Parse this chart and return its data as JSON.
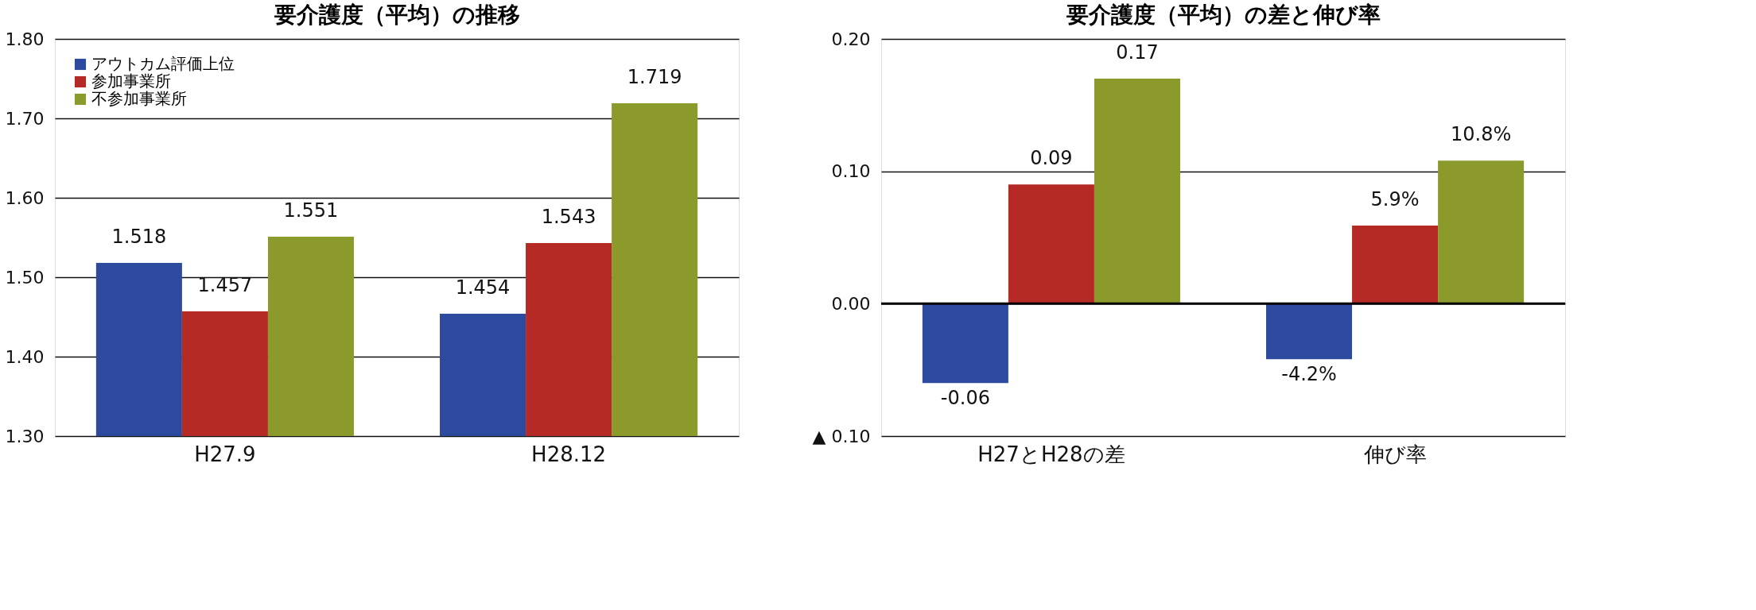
{
  "chart_data": [
    {
      "type": "bar",
      "title": "要介護度（平均）の推移",
      "categories": [
        "H27.9",
        "H28.12"
      ],
      "series": [
        {
          "name": "アウトカム評価上位",
          "color": "#2e4a9e",
          "values": [
            1.518,
            1.454
          ]
        },
        {
          "name": "参加事業所",
          "color": "#b52a24",
          "values": [
            1.457,
            1.543
          ]
        },
        {
          "name": "不参加事業所",
          "color": "#8c9a2c",
          "values": [
            1.551,
            1.719
          ]
        }
      ],
      "ylim": [
        1.3,
        1.8
      ],
      "yticks": [
        {
          "value": 1.3,
          "label": "1.30"
        },
        {
          "value": 1.4,
          "label": "1.40"
        },
        {
          "value": 1.5,
          "label": "1.50"
        },
        {
          "value": 1.6,
          "label": "1.60"
        },
        {
          "value": 1.7,
          "label": "1.70"
        },
        {
          "value": 1.8,
          "label": "1.80"
        }
      ],
      "grid": "y",
      "legend": "top left",
      "data_labels": true
    },
    {
      "type": "bar",
      "title": "要介護度（平均）の差と伸び率",
      "categories": [
        "H27とH28の差",
        "伸び率"
      ],
      "series": [
        {
          "color": "#2e4a9e",
          "values": [
            -0.06,
            -0.042
          ],
          "value_labels": [
            "-0.06",
            "-4.2%"
          ]
        },
        {
          "color": "#b52a24",
          "values": [
            0.09,
            0.059
          ],
          "value_labels": [
            "0.09",
            "5.9%"
          ]
        },
        {
          "color": "#8c9a2c",
          "values": [
            0.17,
            0.108
          ],
          "value_labels": [
            "0.17",
            "10.8%"
          ]
        }
      ],
      "ylim": [
        -0.1,
        0.2
      ],
      "yticks": [
        {
          "value": -0.1,
          "label": "▲ 0.10"
        },
        {
          "value": 0.0,
          "label": "0.00"
        },
        {
          "value": 0.1,
          "label": "0.10"
        },
        {
          "value": 0.2,
          "label": "0.20"
        }
      ],
      "grid": "y",
      "legend": false
    }
  ]
}
